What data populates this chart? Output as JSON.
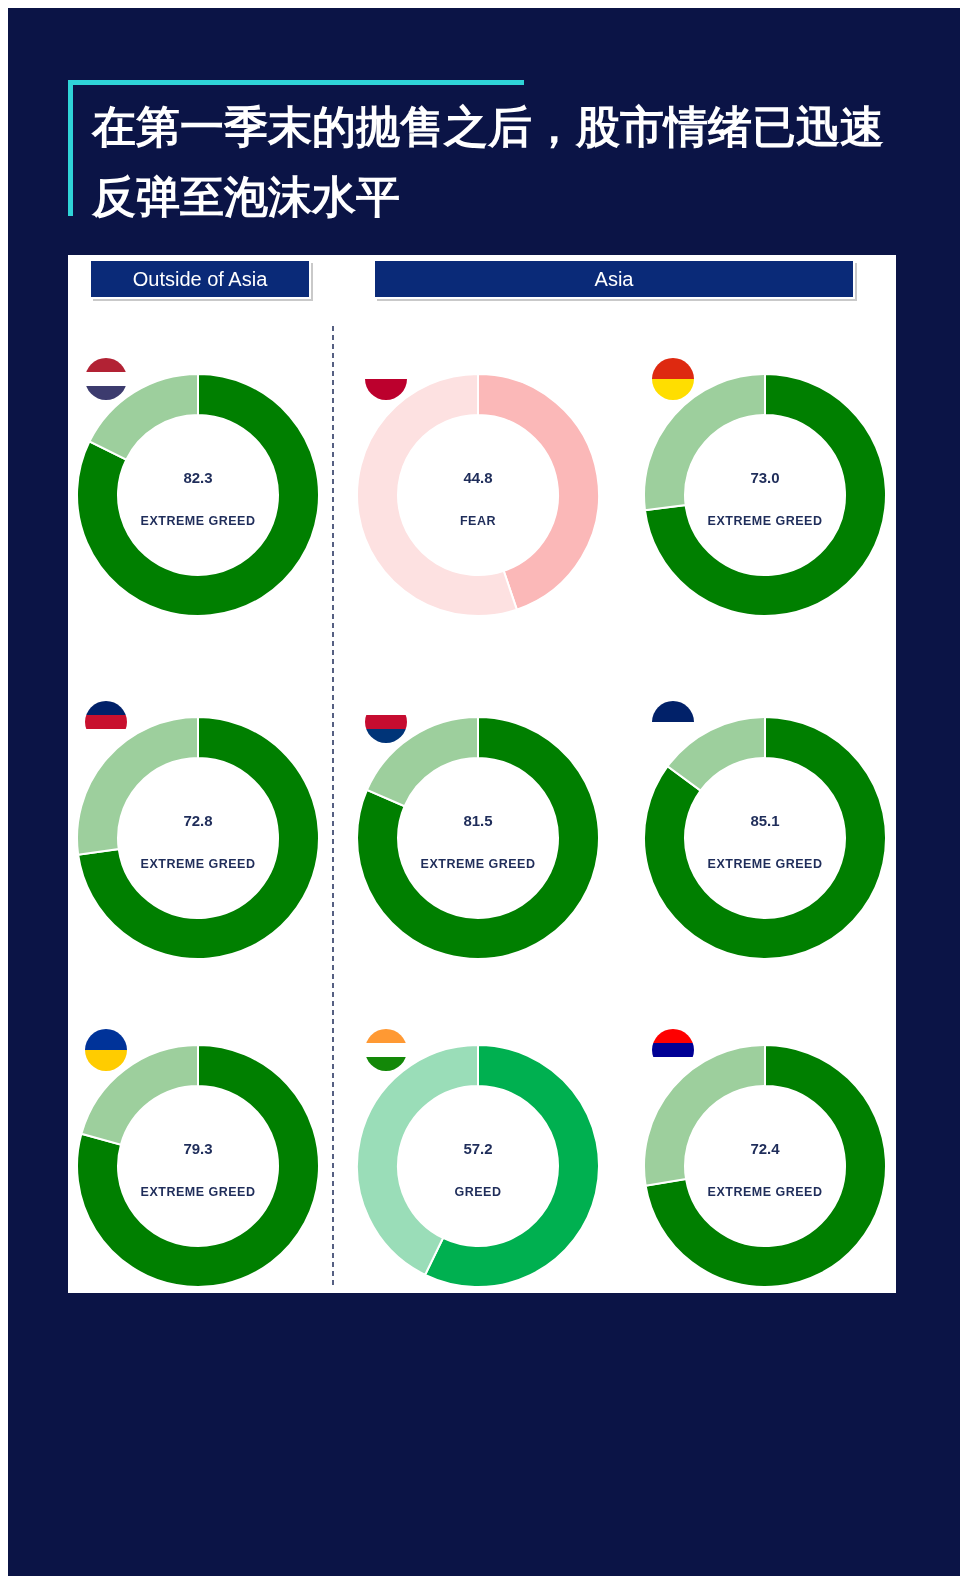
{
  "chart_data": [
    {
      "type": "other",
      "title": "在第一季末的抛售之后，股市情绪已迅速反弹至泡沫水平",
      "annotations": [
        "Outside of Asia",
        "Asia"
      ]
    },
    {
      "type": "donut",
      "categories": [
        null,
        null
      ],
      "values": [
        82.3,
        17.7
      ],
      "colors": [
        "#007f00",
        "#9dcf9d"
      ],
      "value_labels": [
        "82.3",
        null
      ],
      "annotations": [
        "EXTREME GREED"
      ]
    },
    {
      "type": "donut",
      "categories": [
        null,
        null
      ],
      "values": [
        44.8,
        55.2
      ],
      "colors": [
        "#fbb8b8",
        "#fde1e1"
      ],
      "value_labels": [
        "44.8",
        null
      ],
      "annotations": [
        "FEAR"
      ]
    },
    {
      "type": "donut",
      "categories": [
        null,
        null
      ],
      "values": [
        73.0,
        27.0
      ],
      "colors": [
        "#007f00",
        "#9dcf9d"
      ],
      "value_labels": [
        "73.0",
        null
      ],
      "annotations": [
        "EXTREME GREED"
      ]
    },
    {
      "type": "donut",
      "categories": [
        null,
        null
      ],
      "values": [
        72.8,
        27.2
      ],
      "colors": [
        "#007f00",
        "#9dcf9d"
      ],
      "value_labels": [
        "72.8",
        null
      ],
      "annotations": [
        "EXTREME GREED"
      ]
    },
    {
      "type": "donut",
      "categories": [
        null,
        null
      ],
      "values": [
        81.5,
        18.5
      ],
      "colors": [
        "#007f00",
        "#9dcf9d"
      ],
      "value_labels": [
        "81.5",
        null
      ],
      "annotations": [
        "EXTREME GREED"
      ]
    },
    {
      "type": "donut",
      "categories": [
        null,
        null
      ],
      "values": [
        85.1,
        14.9
      ],
      "colors": [
        "#007f00",
        "#9dcf9d"
      ],
      "value_labels": [
        "85.1",
        null
      ],
      "annotations": [
        "EXTREME GREED"
      ]
    },
    {
      "type": "donut",
      "categories": [
        null,
        null
      ],
      "values": [
        79.3,
        20.7
      ],
      "colors": [
        "#007f00",
        "#9dcf9d"
      ],
      "value_labels": [
        "79.3",
        null
      ],
      "annotations": [
        "EXTREME GREED"
      ]
    },
    {
      "type": "donut",
      "categories": [
        null,
        null
      ],
      "values": [
        57.2,
        42.8
      ],
      "colors": [
        "#00b050",
        "#9addb8"
      ],
      "value_labels": [
        "57.2",
        null
      ],
      "annotations": [
        "GREED"
      ]
    },
    {
      "type": "donut",
      "categories": [
        null,
        null
      ],
      "values": [
        72.4,
        27.6
      ],
      "colors": [
        "#007f00",
        "#9dcf9d"
      ],
      "value_labels": [
        "72.4",
        null
      ],
      "annotations": [
        "EXTREME GREED"
      ]
    }
  ]
}
